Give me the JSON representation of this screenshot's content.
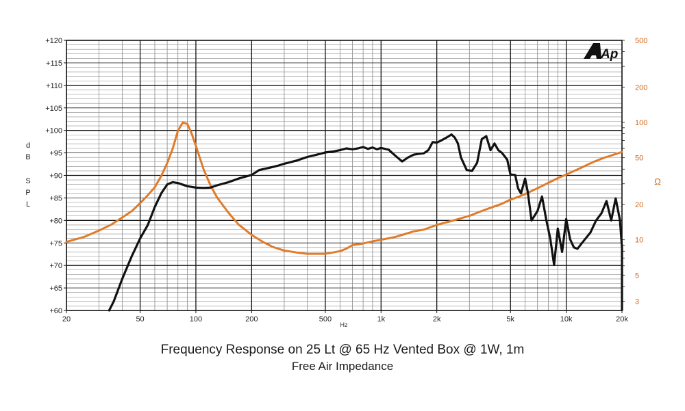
{
  "chart_data": {
    "type": "line",
    "title": "Frequency Response on 25 Lt @ 65 Hz Vented Box @ 1W, 1m",
    "subtitle": "Free Air Impedance",
    "x_scale": "log",
    "xlim": [
      20,
      20000
    ],
    "x_label": "Hz",
    "x_ticks": [
      {
        "value": 20,
        "label": "20"
      },
      {
        "value": 50,
        "label": "50"
      },
      {
        "value": 100,
        "label": "100"
      },
      {
        "value": 200,
        "label": "200"
      },
      {
        "value": 500,
        "label": "500"
      },
      {
        "value": 1000,
        "label": "1k"
      },
      {
        "value": 2000,
        "label": "2k"
      },
      {
        "value": 5000,
        "label": "5k"
      },
      {
        "value": 10000,
        "label": "10k"
      },
      {
        "value": 20000,
        "label": "20k"
      }
    ],
    "y_left": {
      "label_letters": [
        "d",
        "B",
        "S",
        "P",
        "L"
      ],
      "ylim": [
        60,
        120
      ],
      "ticks": [
        {
          "value": 120,
          "label": "+120"
        },
        {
          "value": 115,
          "label": "+115"
        },
        {
          "value": 110,
          "label": "+110"
        },
        {
          "value": 105,
          "label": "+105"
        },
        {
          "value": 100,
          "label": "+100"
        },
        {
          "value": 95,
          "label": "+95"
        },
        {
          "value": 90,
          "label": "+90"
        },
        {
          "value": 85,
          "label": "+85"
        },
        {
          "value": 80,
          "label": "+80"
        },
        {
          "value": 75,
          "label": "+75"
        },
        {
          "value": 70,
          "label": "+70"
        },
        {
          "value": 65,
          "label": "+65"
        },
        {
          "value": 60,
          "label": "+60"
        }
      ]
    },
    "y_right": {
      "label": "Ω",
      "scale": "log",
      "ylim": [
        2.5,
        500
      ],
      "ticks": [
        {
          "value": 500,
          "label": "500"
        },
        {
          "value": 200,
          "label": "200"
        },
        {
          "value": 100,
          "label": "100"
        },
        {
          "value": 50,
          "label": "50"
        },
        {
          "value": 20,
          "label": "20"
        },
        {
          "value": 10,
          "label": "10"
        },
        {
          "value": 5,
          "label": "5"
        },
        {
          "value": 3,
          "label": "3"
        }
      ]
    },
    "grid": true,
    "series": [
      {
        "axis": "left",
        "color": "#111111",
        "points": [
          [
            34,
            60
          ],
          [
            36,
            62
          ],
          [
            40,
            67
          ],
          [
            45,
            72
          ],
          [
            50,
            76
          ],
          [
            55,
            79
          ],
          [
            60,
            83
          ],
          [
            65,
            86
          ],
          [
            70,
            88
          ],
          [
            75,
            88.5
          ],
          [
            80,
            88.3
          ],
          [
            90,
            87.6
          ],
          [
            100,
            87.3
          ],
          [
            110,
            87.2
          ],
          [
            120,
            87.3
          ],
          [
            130,
            87.8
          ],
          [
            150,
            88.5
          ],
          [
            170,
            89.3
          ],
          [
            200,
            90.1
          ],
          [
            220,
            91.2
          ],
          [
            250,
            91.7
          ],
          [
            280,
            92.2
          ],
          [
            300,
            92.6
          ],
          [
            350,
            93.3
          ],
          [
            400,
            94.1
          ],
          [
            450,
            94.6
          ],
          [
            500,
            95.1
          ],
          [
            550,
            95.3
          ],
          [
            600,
            95.6
          ],
          [
            650,
            96
          ],
          [
            700,
            95.8
          ],
          [
            750,
            96
          ],
          [
            800,
            96.3
          ],
          [
            850,
            95.9
          ],
          [
            900,
            96.2
          ],
          [
            950,
            95.8
          ],
          [
            1000,
            96.1
          ],
          [
            1100,
            95.7
          ],
          [
            1200,
            94.3
          ],
          [
            1300,
            93.1
          ],
          [
            1400,
            94
          ],
          [
            1500,
            94.6
          ],
          [
            1600,
            94.8
          ],
          [
            1700,
            94.9
          ],
          [
            1800,
            95.6
          ],
          [
            1900,
            97.4
          ],
          [
            2000,
            97.3
          ],
          [
            2100,
            97.7
          ],
          [
            2300,
            98.6
          ],
          [
            2400,
            99.1
          ],
          [
            2500,
            98.4
          ],
          [
            2600,
            97.1
          ],
          [
            2700,
            94
          ],
          [
            2900,
            91.2
          ],
          [
            3100,
            91
          ],
          [
            3300,
            92.8
          ],
          [
            3500,
            98.1
          ],
          [
            3700,
            98.7
          ],
          [
            3900,
            95.6
          ],
          [
            4100,
            97.1
          ],
          [
            4300,
            95.6
          ],
          [
            4500,
            95
          ],
          [
            4800,
            93.5
          ],
          [
            5000,
            90.2
          ],
          [
            5300,
            90.1
          ],
          [
            5500,
            87.1
          ],
          [
            5700,
            86
          ],
          [
            6000,
            89.3
          ],
          [
            6200,
            86.3
          ],
          [
            6500,
            80
          ],
          [
            7000,
            82.1
          ],
          [
            7400,
            85.3
          ],
          [
            7800,
            80.1
          ],
          [
            8200,
            76
          ],
          [
            8600,
            70.1
          ],
          [
            9000,
            78.2
          ],
          [
            9500,
            73
          ],
          [
            10000,
            80.3
          ],
          [
            10500,
            75.8
          ],
          [
            11000,
            74
          ],
          [
            11500,
            73.7
          ],
          [
            12500,
            75.6
          ],
          [
            13500,
            77.3
          ],
          [
            14500,
            80
          ],
          [
            15500,
            81.6
          ],
          [
            16500,
            84.3
          ],
          [
            17500,
            80
          ],
          [
            18500,
            84.9
          ],
          [
            19500,
            80.1
          ],
          [
            20500,
            74
          ],
          [
            21000,
            65
          ],
          [
            22000,
            60.1
          ]
        ]
      },
      {
        "axis": "right",
        "color": "#e07b2a",
        "points": [
          [
            20,
            9.6
          ],
          [
            25,
            10.6
          ],
          [
            30,
            12
          ],
          [
            35,
            13.5
          ],
          [
            40,
            15.5
          ],
          [
            45,
            17.5
          ],
          [
            50,
            20.5
          ],
          [
            55,
            24
          ],
          [
            60,
            28
          ],
          [
            65,
            35
          ],
          [
            70,
            45
          ],
          [
            75,
            60
          ],
          [
            80,
            85
          ],
          [
            85,
            100
          ],
          [
            90,
            97
          ],
          [
            95,
            80
          ],
          [
            100,
            63
          ],
          [
            110,
            40
          ],
          [
            120,
            29
          ],
          [
            130,
            23
          ],
          [
            150,
            17
          ],
          [
            170,
            13.5
          ],
          [
            200,
            11
          ],
          [
            230,
            9.6
          ],
          [
            260,
            8.7
          ],
          [
            300,
            8.1
          ],
          [
            350,
            7.8
          ],
          [
            400,
            7.6
          ],
          [
            450,
            7.6
          ],
          [
            500,
            7.6
          ],
          [
            550,
            7.8
          ],
          [
            600,
            8
          ],
          [
            650,
            8.4
          ],
          [
            700,
            9
          ],
          [
            800,
            9.3
          ],
          [
            900,
            9.7
          ],
          [
            1000,
            10
          ],
          [
            1100,
            10.3
          ],
          [
            1200,
            10.6
          ],
          [
            1300,
            11
          ],
          [
            1500,
            11.8
          ],
          [
            1700,
            12.2
          ],
          [
            1900,
            13
          ],
          [
            2100,
            13.7
          ],
          [
            2300,
            14.2
          ],
          [
            2600,
            15
          ],
          [
            3000,
            16
          ],
          [
            3500,
            17.6
          ],
          [
            4000,
            19
          ],
          [
            4500,
            20.3
          ],
          [
            5000,
            22
          ],
          [
            5500,
            23.2
          ],
          [
            6000,
            24.5
          ],
          [
            7000,
            27.5
          ],
          [
            8000,
            30.5
          ],
          [
            9000,
            33.5
          ],
          [
            10000,
            36
          ],
          [
            11000,
            38.5
          ],
          [
            12000,
            41
          ],
          [
            13000,
            43.5
          ],
          [
            14000,
            46
          ],
          [
            15000,
            48
          ],
          [
            16000,
            50
          ],
          [
            17000,
            51.5
          ],
          [
            18000,
            53
          ],
          [
            19000,
            54.5
          ],
          [
            20000,
            56
          ]
        ]
      }
    ]
  },
  "brand_logo": "Ap"
}
